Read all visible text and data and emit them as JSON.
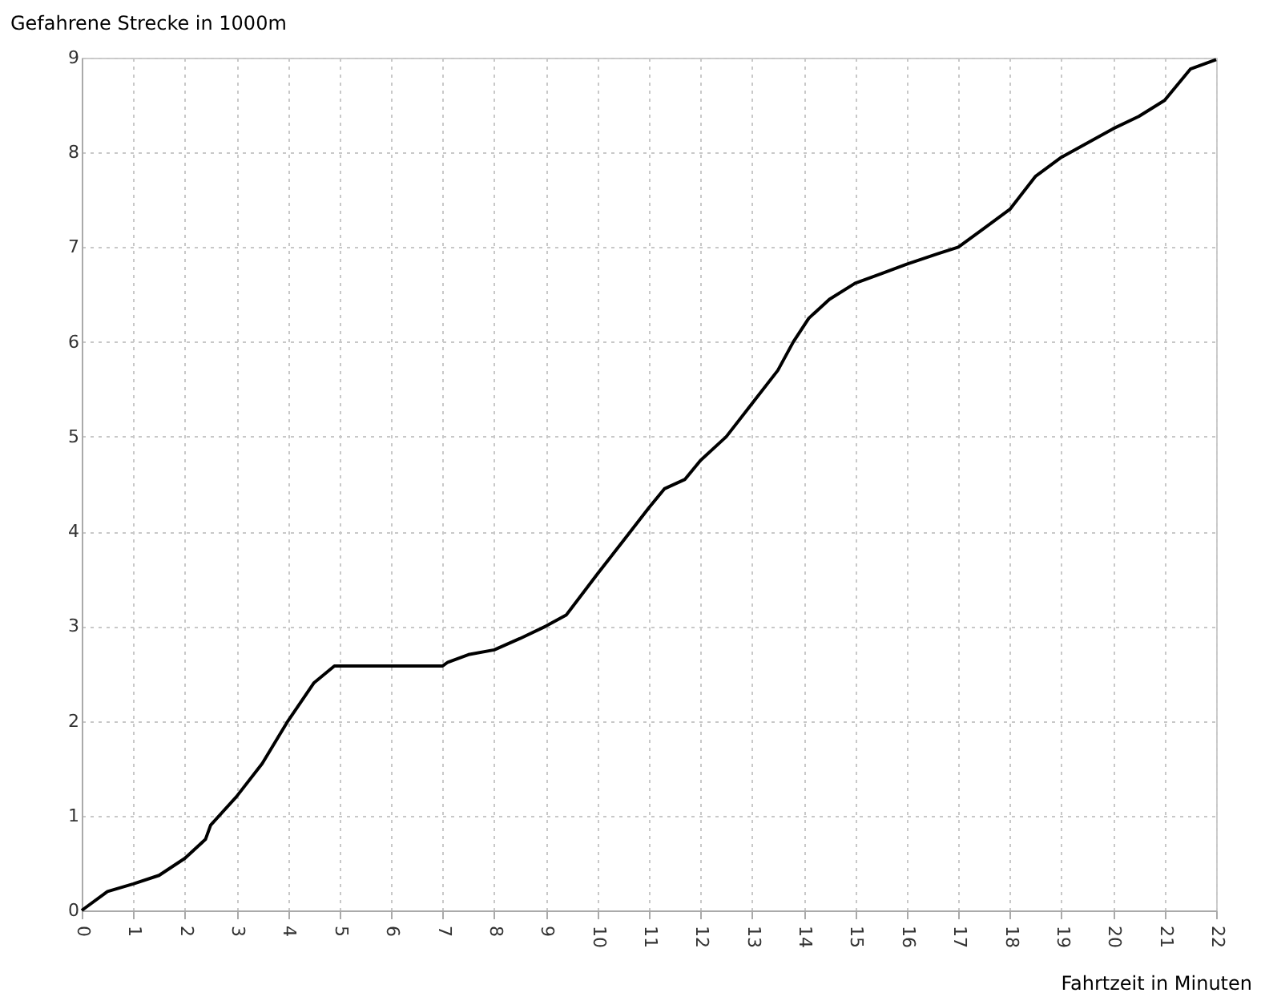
{
  "chart_data": {
    "type": "line",
    "xlabel": "Fahrtzeit in Minuten",
    "ylabel": "Gefahrene Strecke in 1000m",
    "x": [
      0,
      0.5,
      1,
      1.5,
      2,
      2.4,
      2.5,
      3,
      3.5,
      4,
      4.5,
      4.9,
      7,
      7.1,
      7.5,
      8,
      8.5,
      9,
      9.4,
      10,
      10.5,
      11,
      11.3,
      11.7,
      12,
      12.5,
      13,
      13.5,
      13.8,
      14.1,
      14.5,
      15,
      15.5,
      16,
      16.6,
      17,
      17.5,
      18,
      18.5,
      19,
      19.5,
      20,
      20.5,
      21,
      21.5,
      22
    ],
    "series": [
      {
        "color": "#000000",
        "values": [
          0,
          0.2,
          0.28,
          0.37,
          0.55,
          0.75,
          0.9,
          1.2,
          1.55,
          2.0,
          2.4,
          2.58,
          2.58,
          2.62,
          2.7,
          2.75,
          2.87,
          3.0,
          3.12,
          3.55,
          3.9,
          4.25,
          4.45,
          4.55,
          4.75,
          5.0,
          5.35,
          5.7,
          6.0,
          6.25,
          6.45,
          6.62,
          6.72,
          6.82,
          6.93,
          7.0,
          7.2,
          7.4,
          7.75,
          7.95,
          8.1,
          8.25,
          8.38,
          8.55,
          8.88,
          8.98
        ]
      }
    ],
    "xlim": [
      0,
      22
    ],
    "xticks": [
      0,
      1,
      2,
      3,
      4,
      5,
      6,
      7,
      8,
      9,
      10,
      11,
      12,
      13,
      14,
      15,
      16,
      17,
      18,
      19,
      20,
      21,
      22
    ],
    "ylim": [
      0,
      9
    ],
    "yticks": [
      0,
      1,
      2,
      3,
      4,
      5,
      6,
      7,
      8,
      9
    ],
    "grid": true,
    "marker": "none",
    "line_style": "solid"
  }
}
